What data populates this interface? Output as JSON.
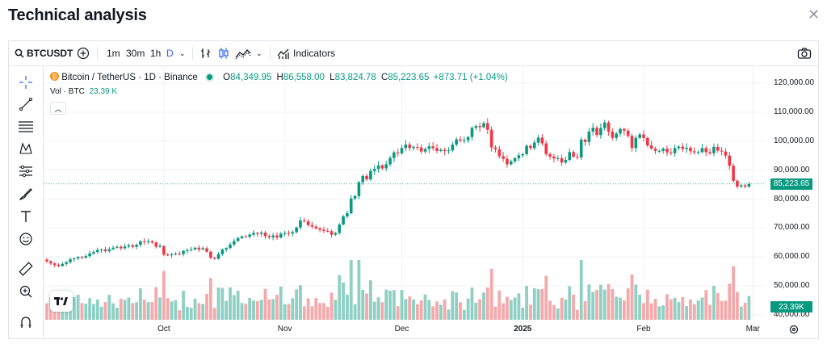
{
  "header": {
    "title": "Technical analysis",
    "close_icon": "close-icon"
  },
  "toolbar": {
    "symbol": "BTCUSDT",
    "intervals": [
      "1m",
      "30m",
      "1h",
      "D"
    ],
    "active_interval": "D",
    "indicators_label": "Indicators"
  },
  "legend": {
    "name": "Bitcoin / TetherUS · 1D · Binance",
    "o_label": "O",
    "o_value": "84,349.95",
    "h_label": "H",
    "h_value": "86,558.00",
    "l_label": "L",
    "l_value": "83,824.78",
    "c_label": "C",
    "c_value": "85,223.65",
    "change": "+873.71 (+1.04%)",
    "vol_label": "Vol · BTC",
    "vol_value": "23.39 K"
  },
  "colors": {
    "up": "#089981",
    "down": "#f23645",
    "vol_up": "#8fcfc4",
    "vol_down": "#f4a9ab"
  },
  "chart_data": {
    "type": "candlestick",
    "title": "",
    "y_ticks": [
      "120,000.00",
      "110,000.00",
      "100,000.00",
      "90,000.00",
      "80,000.00",
      "70,000.00",
      "60,000.00",
      "50,000.00",
      "40,000.00"
    ],
    "y_tick_values": [
      120000,
      110000,
      100000,
      90000,
      80000,
      70000,
      60000,
      50000,
      40000
    ],
    "ylim": [
      38000,
      124000
    ],
    "x_ticks": [
      "Oct",
      "Nov",
      "Dec",
      "2025",
      "Feb",
      "Mar"
    ],
    "x_tick_dates": [
      "2024-10-01",
      "2024-11-01",
      "2024-12-01",
      "2025-01-01",
      "2025-02-01",
      "2025-03-01"
    ],
    "x_start": "2024-09-01",
    "last_price_label": "85,223.65",
    "last_price": 85223.65,
    "last_volume_label": "23.39K",
    "series_close": [
      58500,
      57800,
      57300,
      56900,
      57600,
      58200,
      59200,
      59500,
      60000,
      59800,
      60300,
      61200,
      61700,
      62400,
      62600,
      62000,
      62700,
      63200,
      63500,
      63000,
      63600,
      64000,
      63500,
      64200,
      65400,
      65200,
      65500,
      65000,
      63500,
      63800,
      60800,
      60600,
      60900,
      61100,
      61000,
      62100,
      62300,
      62600,
      63200,
      62600,
      63000,
      61800,
      59700,
      59400,
      61000,
      62600,
      63100,
      64300,
      65500,
      66500,
      67100,
      67000,
      67700,
      68300,
      68000,
      68400,
      67200,
      66800,
      67400,
      66700,
      68000,
      68300,
      68100,
      68600,
      70200,
      72600,
      72300,
      71000,
      70500,
      69900,
      69400,
      69000,
      68900,
      67700,
      68300,
      71200,
      74000,
      75100,
      80200,
      81000,
      85800,
      88000,
      86800,
      89700,
      90400,
      91600,
      90600,
      92000,
      94200,
      96100,
      95800,
      97600,
      98800,
      97600,
      98000,
      97800,
      96400,
      97300,
      98200,
      97600,
      96600,
      97000,
      96600,
      96800,
      98800,
      100600,
      100200,
      100300,
      101400,
      104600,
      105200,
      104800,
      106200,
      103900,
      97800,
      97200,
      94800,
      93900,
      92000,
      93000,
      94100,
      95100,
      95500,
      98400,
      97600,
      99500,
      101200,
      99200,
      95500,
      94700,
      94000,
      94100,
      92600,
      93500,
      96200,
      94600,
      94400,
      100500,
      99700,
      103300,
      104600,
      102100,
      104500,
      106400,
      103300,
      101100,
      102600,
      104200,
      103600,
      101800,
      97600,
      101100,
      102300,
      101100,
      98500,
      97400,
      96600,
      96600,
      97400,
      96100,
      95800,
      97600,
      98100,
      97300,
      97700,
      96500,
      96100,
      96200,
      97600,
      96200,
      95800,
      98000,
      96700,
      96400,
      95000,
      91500,
      86300,
      84300,
      84700,
      84300,
      85223
    ]
  }
}
